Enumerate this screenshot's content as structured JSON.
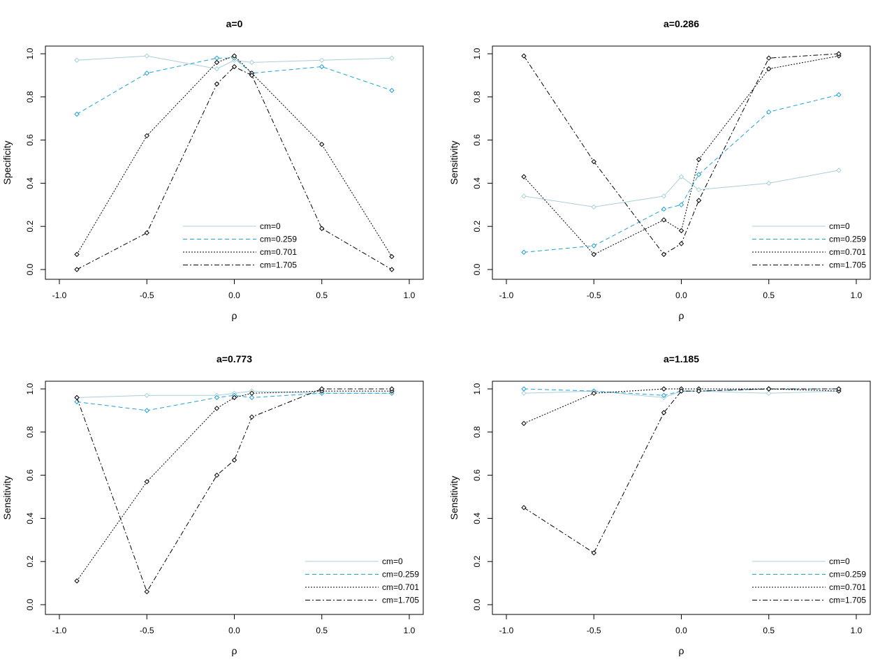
{
  "figure": {
    "series_style": [
      {
        "color": "#a9cfd9",
        "dash": "none"
      },
      {
        "color": "#1fa2d6",
        "dash": "6,4"
      },
      {
        "color": "#000000",
        "dash": "2,2"
      },
      {
        "color": "#000000",
        "dash": "7,3,2,3"
      }
    ]
  },
  "chart_data": [
    {
      "type": "line",
      "title": "a=0",
      "xlabel": "ρ",
      "ylabel": "Specificity",
      "xlim": [
        -1.0,
        1.0
      ],
      "ylim": [
        0.0,
        1.0
      ],
      "xticks": [
        "-1.0",
        "-0.5",
        "0.0",
        "0.5",
        "1.0"
      ],
      "yticks": [
        "0.0",
        "0.2",
        "0.4",
        "0.6",
        "0.8",
        "1.0"
      ],
      "legend_position": "bottom-right",
      "x": [
        -0.9,
        -0.5,
        -0.1,
        0.0,
        0.1,
        0.5,
        0.9
      ],
      "series": [
        {
          "name": "cm=0",
          "values": [
            0.97,
            0.99,
            0.93,
            0.97,
            0.96,
            0.97,
            0.98
          ]
        },
        {
          "name": "cm=0.259",
          "values": [
            0.72,
            0.91,
            0.98,
            0.98,
            0.91,
            0.94,
            0.83
          ]
        },
        {
          "name": "cm=0.701",
          "values": [
            0.07,
            0.62,
            0.96,
            0.99,
            0.91,
            0.58,
            0.06
          ]
        },
        {
          "name": "cm=1.705",
          "values": [
            0.0,
            0.17,
            0.86,
            0.94,
            0.9,
            0.19,
            0.0
          ]
        }
      ]
    },
    {
      "type": "line",
      "title": "a=0.286",
      "xlabel": "ρ",
      "ylabel": "Sensitivity",
      "xlim": [
        -1.0,
        1.0
      ],
      "ylim": [
        0.0,
        1.0
      ],
      "xticks": [
        "-1.0",
        "-0.5",
        "0.0",
        "0.5",
        "1.0"
      ],
      "yticks": [
        "0.0",
        "0.2",
        "0.4",
        "0.6",
        "0.8",
        "1.0"
      ],
      "legend_position": "bottom-right",
      "x": [
        -0.9,
        -0.5,
        -0.1,
        0.0,
        0.1,
        0.5,
        0.9
      ],
      "series": [
        {
          "name": "cm=0",
          "values": [
            0.34,
            0.29,
            0.34,
            0.43,
            0.37,
            0.4,
            0.46
          ]
        },
        {
          "name": "cm=0.259",
          "values": [
            0.08,
            0.11,
            0.28,
            0.3,
            0.44,
            0.73,
            0.81
          ]
        },
        {
          "name": "cm=0.701",
          "values": [
            0.43,
            0.07,
            0.23,
            0.18,
            0.51,
            0.93,
            0.99
          ]
        },
        {
          "name": "cm=1.705",
          "values": [
            0.99,
            0.5,
            0.07,
            0.12,
            0.32,
            0.98,
            1.0
          ]
        }
      ]
    },
    {
      "type": "line",
      "title": "a=0.773",
      "xlabel": "ρ",
      "ylabel": "Sensitivity",
      "xlim": [
        -1.0,
        1.0
      ],
      "ylim": [
        0.0,
        1.0
      ],
      "xticks": [
        "-1.0",
        "-0.5",
        "0.0",
        "0.5",
        "1.0"
      ],
      "yticks": [
        "0.0",
        "0.2",
        "0.4",
        "0.6",
        "0.8",
        "1.0"
      ],
      "legend_position": "bottom-right",
      "x": [
        -0.9,
        -0.5,
        -0.1,
        0.0,
        0.1,
        0.5,
        0.9
      ],
      "series": [
        {
          "name": "cm=0",
          "values": [
            0.96,
            0.97,
            0.97,
            0.98,
            0.99,
            0.98,
            0.98
          ]
        },
        {
          "name": "cm=0.259",
          "values": [
            0.94,
            0.9,
            0.96,
            0.97,
            0.96,
            0.98,
            0.98
          ]
        },
        {
          "name": "cm=0.701",
          "values": [
            0.11,
            0.57,
            0.91,
            0.96,
            0.98,
            0.99,
            0.99
          ]
        },
        {
          "name": "cm=1.705",
          "values": [
            0.96,
            0.06,
            0.6,
            0.67,
            0.87,
            1.0,
            1.0
          ]
        }
      ]
    },
    {
      "type": "line",
      "title": "a=1.185",
      "xlabel": "ρ",
      "ylabel": "Sensitivity",
      "xlim": [
        -1.0,
        1.0
      ],
      "ylim": [
        0.0,
        1.0
      ],
      "xticks": [
        "-1.0",
        "-0.5",
        "0.0",
        "0.5",
        "1.0"
      ],
      "yticks": [
        "0.0",
        "0.2",
        "0.4",
        "0.6",
        "0.8",
        "1.0"
      ],
      "legend_position": "bottom-right",
      "x": [
        -0.9,
        -0.5,
        -0.1,
        0.0,
        0.1,
        0.5,
        0.9
      ],
      "series": [
        {
          "name": "cm=0",
          "values": [
            0.98,
            0.99,
            0.96,
            0.99,
            0.99,
            0.98,
            0.99
          ]
        },
        {
          "name": "cm=0.259",
          "values": [
            1.0,
            0.99,
            0.97,
            0.99,
            0.99,
            1.0,
            1.0
          ]
        },
        {
          "name": "cm=0.701",
          "values": [
            0.84,
            0.98,
            1.0,
            1.0,
            1.0,
            1.0,
            0.99
          ]
        },
        {
          "name": "cm=1.705",
          "values": [
            0.45,
            0.24,
            0.89,
            0.99,
            0.99,
            1.0,
            1.0
          ]
        }
      ]
    }
  ]
}
